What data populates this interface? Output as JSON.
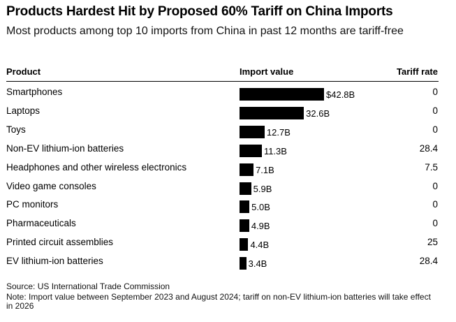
{
  "chart_data": {
    "type": "bar",
    "title": "Products Hardest Hit by Proposed 60% Tariff on China Imports",
    "subtitle": "Most products among top 10 imports from China in past 12 months are tariff-free",
    "columns": {
      "product": "Product",
      "import_value": "Import value",
      "tariff_rate": "Tariff rate"
    },
    "categories": [
      "Smartphones",
      "Laptops",
      "Toys",
      "Non-EV lithium-ion batteries",
      "Headphones and other wireless electronics",
      "Video game consoles",
      "PC monitors",
      "Pharmaceuticals",
      "Printed circuit assemblies",
      "EV lithium-ion batteries"
    ],
    "values": [
      42.8,
      32.6,
      12.7,
      11.3,
      7.1,
      5.9,
      5.0,
      4.9,
      4.4,
      3.4
    ],
    "value_labels": [
      "$42.8B",
      "32.6B",
      "12.7B",
      "11.3B",
      "7.1B",
      "5.9B",
      "5.0B",
      "4.9B",
      "4.4B",
      "3.4B"
    ],
    "tariff_rates": [
      "0",
      "0",
      "0",
      "28.4",
      "7.5",
      "0",
      "0",
      "0",
      "25",
      "28.4"
    ],
    "bar_color": "#000000",
    "xlim": [
      0,
      42.8
    ]
  },
  "footer": {
    "source": "Source: US International Trade Commission",
    "note": "Note: Import value between September 2023 and August 2024; tariff on non-EV lithium-ion batteries will take effect in 2026"
  }
}
